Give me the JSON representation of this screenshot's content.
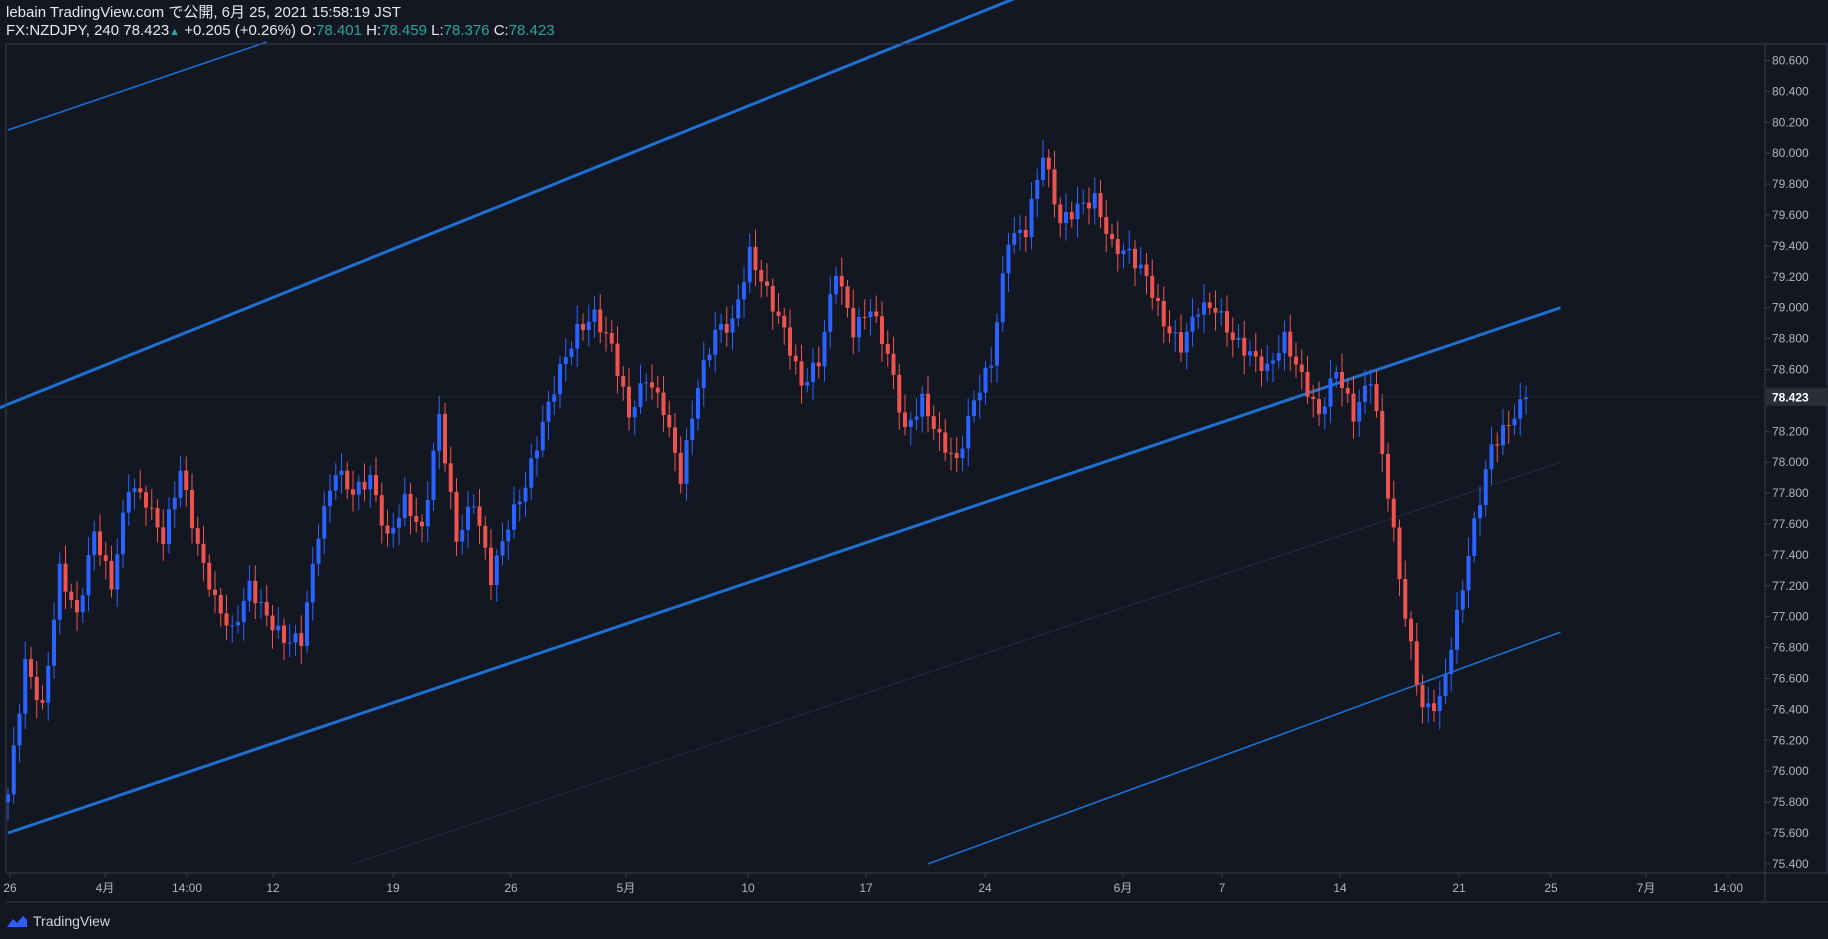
{
  "header": {
    "published": "lebain TradingView.com で公開, 6月 25, 2021 15:58:19 JST",
    "symbol": "FX:NZDJPY, 240",
    "last": "78.423",
    "change": "+0.205 (+0.26%)",
    "o_label": "O:",
    "o": "78.401",
    "h_label": "H:",
    "h": "78.459",
    "l_label": "L:",
    "l": "78.376",
    "c_label": "C:",
    "c": "78.423"
  },
  "footer": {
    "brand": "TradingView",
    "icon": "tradingview-logo-icon"
  },
  "colors": {
    "bg": "#131722",
    "up": "#2962ff",
    "down": "#ef5350",
    "line": "#1e6fd0",
    "price_tag": "#2a2e39"
  },
  "chart_data": {
    "type": "candlestick",
    "symbol": "FX:NZDJPY",
    "interval": "240",
    "ylim": [
      75.37,
      80.72
    ],
    "y_ticks": [
      "80.600",
      "80.400",
      "80.200",
      "80.000",
      "79.800",
      "79.600",
      "79.400",
      "79.200",
      "79.000",
      "78.800",
      "78.600",
      "78.400",
      "78.200",
      "78.000",
      "77.800",
      "77.600",
      "77.400",
      "77.200",
      "77.000",
      "76.800",
      "76.600",
      "76.400",
      "76.200",
      "76.000",
      "75.800",
      "75.600",
      "75.400"
    ],
    "x_ticks": [
      "26",
      "4月",
      "14:00",
      "12",
      "19",
      "26",
      "5月",
      "10",
      "17",
      "24",
      "6月",
      "7",
      "14",
      "21",
      "25",
      "7月",
      "14:00"
    ],
    "last_price": "78.423",
    "close_path": [
      [
        0,
        75.85
      ],
      [
        3,
        76.7
      ],
      [
        6,
        76.4
      ],
      [
        9,
        77.3
      ],
      [
        12,
        77.0
      ],
      [
        15,
        77.55
      ],
      [
        18,
        77.2
      ],
      [
        21,
        77.85
      ],
      [
        24,
        77.75
      ],
      [
        27,
        77.5
      ],
      [
        30,
        77.95
      ],
      [
        33,
        77.45
      ],
      [
        36,
        77.1
      ],
      [
        39,
        76.9
      ],
      [
        42,
        77.2
      ],
      [
        45,
        77.0
      ],
      [
        48,
        76.85
      ],
      [
        51,
        76.85
      ],
      [
        54,
        77.55
      ],
      [
        57,
        77.95
      ],
      [
        60,
        77.8
      ],
      [
        63,
        77.9
      ],
      [
        66,
        77.5
      ],
      [
        69,
        77.75
      ],
      [
        72,
        77.55
      ],
      [
        75,
        78.3
      ],
      [
        78,
        77.5
      ],
      [
        81,
        77.75
      ],
      [
        84,
        77.25
      ],
      [
        87,
        77.6
      ],
      [
        90,
        77.85
      ],
      [
        93,
        78.25
      ],
      [
        96,
        78.6
      ],
      [
        99,
        78.85
      ],
      [
        102,
        78.95
      ],
      [
        105,
        78.75
      ],
      [
        108,
        78.3
      ],
      [
        111,
        78.55
      ],
      [
        114,
        78.35
      ],
      [
        117,
        77.9
      ],
      [
        120,
        78.5
      ],
      [
        123,
        78.85
      ],
      [
        126,
        78.9
      ],
      [
        129,
        79.35
      ],
      [
        132,
        79.1
      ],
      [
        135,
        78.85
      ],
      [
        138,
        78.5
      ],
      [
        141,
        78.65
      ],
      [
        144,
        79.25
      ],
      [
        147,
        78.85
      ],
      [
        150,
        79.0
      ],
      [
        153,
        78.7
      ],
      [
        156,
        78.2
      ],
      [
        159,
        78.4
      ],
      [
        162,
        78.15
      ],
      [
        165,
        78.0
      ],
      [
        168,
        78.4
      ],
      [
        171,
        78.65
      ],
      [
        174,
        79.45
      ],
      [
        177,
        79.5
      ],
      [
        180,
        80.0
      ],
      [
        183,
        79.55
      ],
      [
        186,
        79.65
      ],
      [
        189,
        79.7
      ],
      [
        192,
        79.4
      ],
      [
        195,
        79.35
      ],
      [
        198,
        79.2
      ],
      [
        201,
        78.9
      ],
      [
        204,
        78.75
      ],
      [
        207,
        79.0
      ],
      [
        210,
        79.0
      ],
      [
        213,
        78.8
      ],
      [
        216,
        78.7
      ],
      [
        219,
        78.6
      ],
      [
        222,
        78.8
      ],
      [
        225,
        78.55
      ],
      [
        228,
        78.3
      ],
      [
        231,
        78.6
      ],
      [
        234,
        78.3
      ],
      [
        237,
        78.55
      ],
      [
        240,
        77.8
      ],
      [
        243,
        77.0
      ],
      [
        246,
        76.4
      ],
      [
        249,
        76.45
      ],
      [
        252,
        77.0
      ],
      [
        255,
        77.6
      ],
      [
        258,
        78.1
      ],
      [
        261,
        78.25
      ],
      [
        264,
        78.42
      ]
    ],
    "channel_lines": [
      {
        "name": "upper-channel",
        "start": [
          -5,
          78.3
        ],
        "end": [
          195,
          81.3
        ],
        "width": "thick"
      },
      {
        "name": "middle-channel",
        "start": [
          0,
          75.6
        ],
        "end": [
          270,
          79.0
        ],
        "width": "thick"
      },
      {
        "name": "lower-channel",
        "start": [
          160,
          75.4
        ],
        "end": [
          270,
          76.9
        ],
        "width": "thin"
      },
      {
        "name": "outer-upper-channel",
        "start": [
          0,
          80.15
        ],
        "end": [
          45,
          80.72
        ],
        "width": "thin"
      },
      {
        "name": "faint-mid-channel",
        "start": [
          60,
          75.4
        ],
        "end": [
          270,
          78.0
        ],
        "width": "hairline"
      }
    ]
  }
}
